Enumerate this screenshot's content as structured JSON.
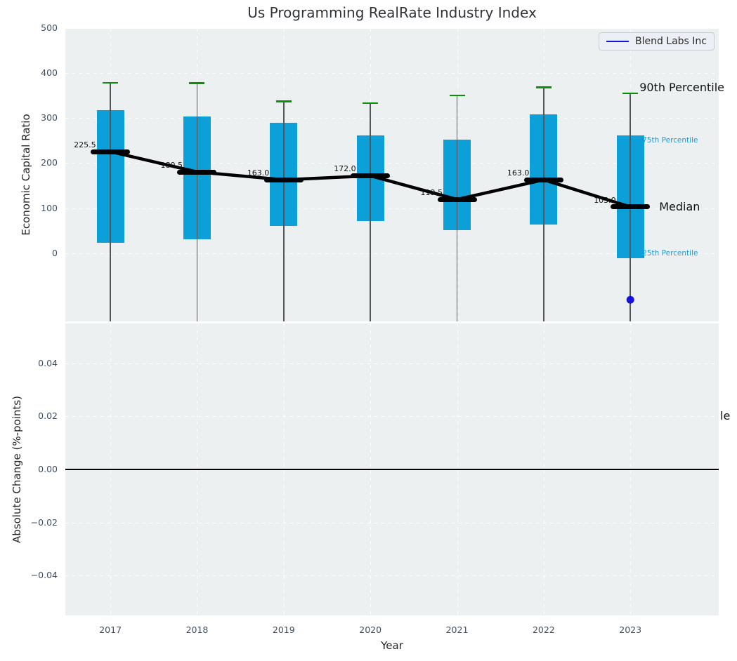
{
  "title": "Us Programming RealRate Industry Index",
  "legend": {
    "label": "Blend Labs Inc"
  },
  "colors": {
    "figure_bg": "#ffffff",
    "axes_bg": "#edf0f1",
    "box_fill": "#0c9fd8",
    "cap_green": "#089008",
    "whisker_gray": "#53575c",
    "median_black": "#000000",
    "blend_blue": "#1414dc",
    "percentile_label_blue": "#1a9cd8",
    "tick_label": "#3d4f63",
    "grid": "#ffffff"
  },
  "chart_data": {
    "type": "boxplot",
    "title": "Us Programming RealRate Industry Index",
    "xlabel": "Year",
    "xtick_labels": [
      "2017",
      "2018",
      "2019",
      "2020",
      "2021",
      "2022",
      "2023"
    ],
    "top_panel": {
      "ylabel": "Economic Capital Ratio",
      "ytick_labels": [
        "0",
        "100",
        "200",
        "300",
        "400",
        "500"
      ],
      "ytick_values": [
        0,
        100,
        200,
        300,
        400,
        500
      ],
      "ylim": [
        -151,
        498
      ],
      "grid": "white dashed",
      "legend_position": "upper right",
      "boxes": [
        {
          "year": 2017,
          "p90": 378,
          "p75": 318,
          "median": 225.5,
          "p25": 24,
          "median_label": "225.5"
        },
        {
          "year": 2018,
          "p90": 377,
          "p75": 304,
          "median": 180.5,
          "p25": 31,
          "median_label": "180.5"
        },
        {
          "year": 2019,
          "p90": 337,
          "p75": 290,
          "median": 163.0,
          "p25": 61,
          "median_label": "163.0"
        },
        {
          "year": 2020,
          "p90": 333,
          "p75": 261,
          "median": 172.0,
          "p25": 71,
          "median_label": "172.0"
        },
        {
          "year": 2021,
          "p90": 350,
          "p75": 252,
          "median": 119.5,
          "p25": 52,
          "median_label": "119.5"
        },
        {
          "year": 2022,
          "p90": 368,
          "p75": 308,
          "median": 163.0,
          "p25": 63,
          "median_label": "163.0"
        },
        {
          "year": 2023,
          "p90": 355,
          "p75": 262,
          "median": 103.0,
          "p25": -11,
          "median_label": "103.0"
        }
      ],
      "lower_whiskers_clipped_below_axis": true,
      "median_trend_line": [
        225.5,
        180.5,
        163.0,
        172.0,
        119.5,
        163.0,
        103.0
      ],
      "blend_labs_point": {
        "year": 2023,
        "value": -103
      },
      "annotations": {
        "p90": "90th Percentile",
        "p75": "75th Percentile",
        "median": "Median",
        "p25": "25th Percentile"
      }
    },
    "bottom_panel": {
      "ylabel": "Absolute Change (%-points)",
      "ytick_labels": [
        "0.04",
        "0.02",
        "0.00",
        "−0.02",
        "−0.04"
      ],
      "ytick_values": [
        0.04,
        0.02,
        0.0,
        -0.02,
        -0.04
      ],
      "ylim": [
        -0.055,
        0.055
      ],
      "zero_line": 0.0,
      "clipped_annotation_text": "le",
      "grid": "white dashed"
    }
  }
}
